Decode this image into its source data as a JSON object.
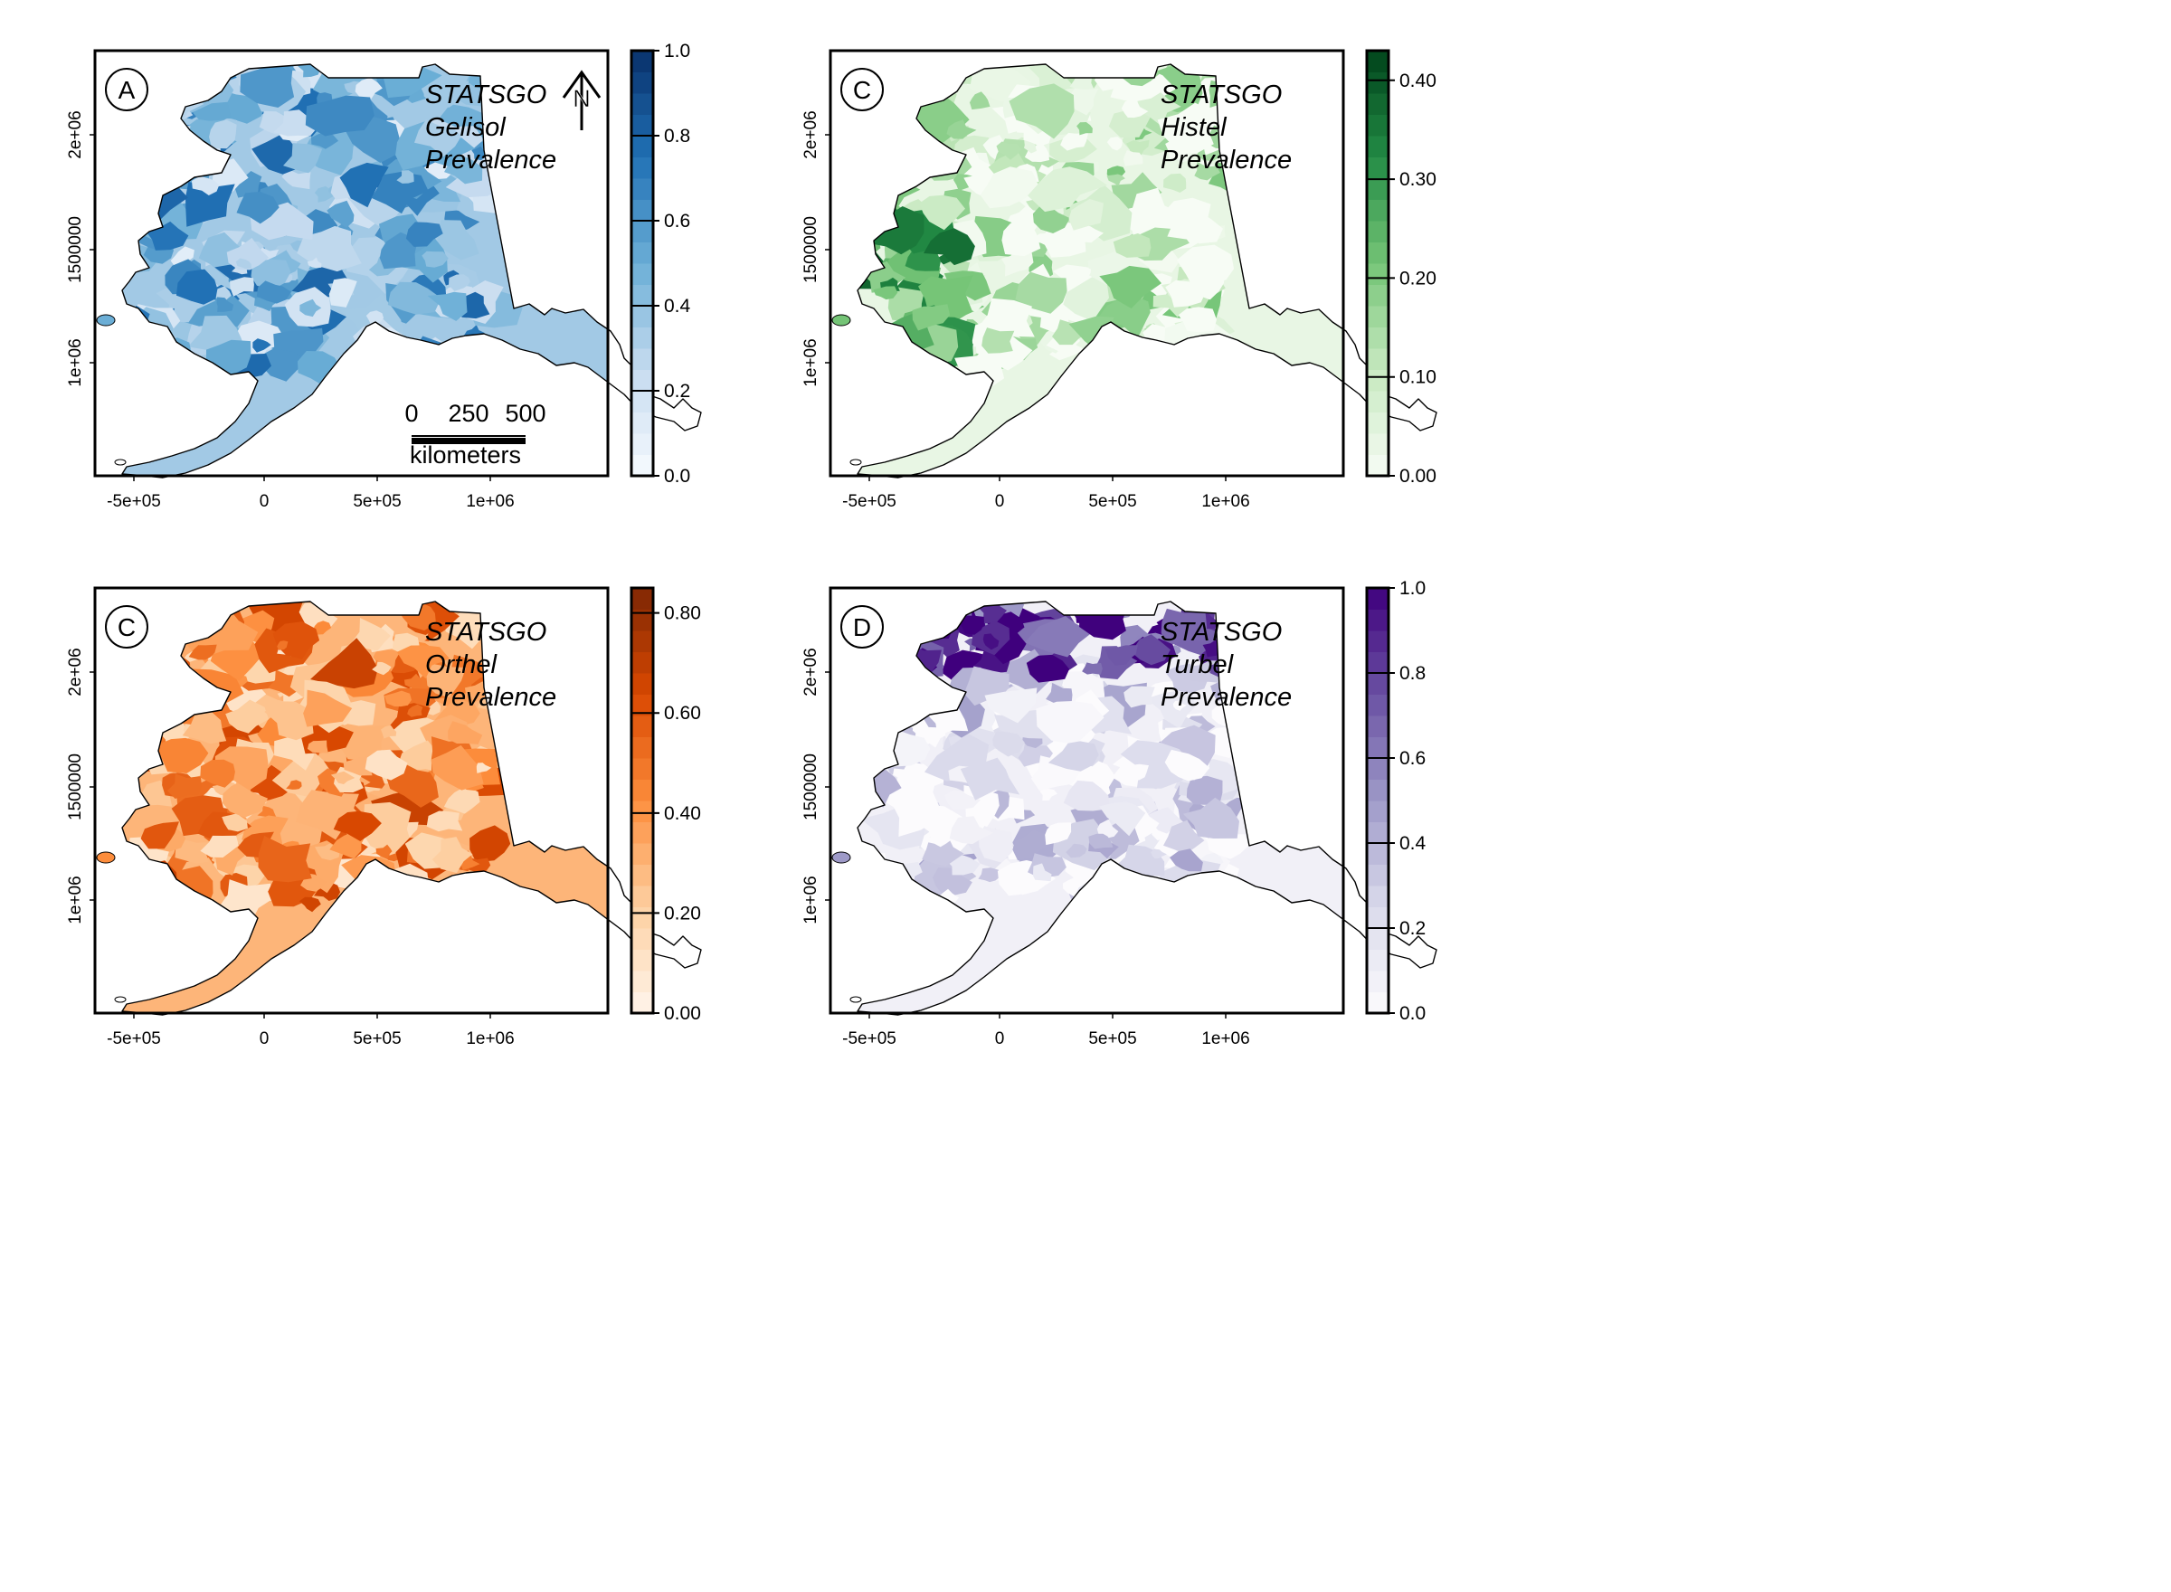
{
  "figure": {
    "x_ticks": [
      "-5e+05",
      "0",
      "5e+05",
      "1e+06"
    ],
    "y_ticks": [
      "1e+06",
      "1500000",
      "2e+06"
    ],
    "scale_bar": {
      "labels": [
        "0",
        "250",
        "500"
      ],
      "unit": "kilometers"
    },
    "north_arrow": {
      "label": "N",
      "icon": "north-arrow-icon"
    },
    "outline_color": "#000000"
  },
  "panels": [
    {
      "id": "gelisol",
      "letter": "A",
      "title_lines": [
        "STATSGO",
        "Gelisol",
        "Prevalence"
      ],
      "palette": [
        "#f7fbff",
        "#c6dbef",
        "#6baed6",
        "#2171b5",
        "#08306b"
      ],
      "colorbar": {
        "min": 0,
        "max": 1.0,
        "ticks": [
          "0.0",
          "0.2",
          "0.4",
          "0.6",
          "0.8",
          "1.0"
        ],
        "tick_values": [
          0,
          0.2,
          0.4,
          0.6,
          0.8,
          1.0
        ]
      },
      "has_scale_bar": true,
      "has_north_arrow": true
    },
    {
      "id": "histel",
      "letter": "C",
      "title_lines": [
        "STATSGO",
        "Histel",
        "Prevalence"
      ],
      "palette": [
        "#f7fcf5",
        "#c7e9c0",
        "#74c476",
        "#238b45",
        "#00441b"
      ],
      "colorbar": {
        "min": 0,
        "max": 0.43,
        "ticks": [
          "0.00",
          "0.10",
          "0.20",
          "0.30",
          "0.40"
        ],
        "tick_values": [
          0,
          0.1,
          0.2,
          0.3,
          0.4
        ]
      },
      "has_scale_bar": false,
      "has_north_arrow": false
    },
    {
      "id": "orthel",
      "letter": "C",
      "title_lines": [
        "STATSGO",
        "Orthel",
        "Prevalence"
      ],
      "palette": [
        "#fff5eb",
        "#fdd0a2",
        "#fd8d3c",
        "#d94801",
        "#7f2704"
      ],
      "colorbar": {
        "min": 0,
        "max": 0.85,
        "ticks": [
          "0.00",
          "0.20",
          "0.40",
          "0.60",
          "0.80"
        ],
        "tick_values": [
          0,
          0.2,
          0.4,
          0.6,
          0.8
        ]
      },
      "has_scale_bar": false,
      "has_north_arrow": false
    },
    {
      "id": "turbel",
      "letter": "D",
      "title_lines": [
        "STATSGO",
        "Turbel",
        "Prevalence"
      ],
      "palette": [
        "#fcfbfd",
        "#dadaeb",
        "#9e9ac8",
        "#6a51a3",
        "#3f007d"
      ],
      "colorbar": {
        "min": 0,
        "max": 1.0,
        "ticks": [
          "0.0",
          "0.2",
          "0.4",
          "0.6",
          "0.8",
          "1.0"
        ],
        "tick_values": [
          0,
          0.2,
          0.4,
          0.6,
          0.8,
          1.0
        ]
      },
      "has_scale_bar": false,
      "has_north_arrow": false
    }
  ]
}
